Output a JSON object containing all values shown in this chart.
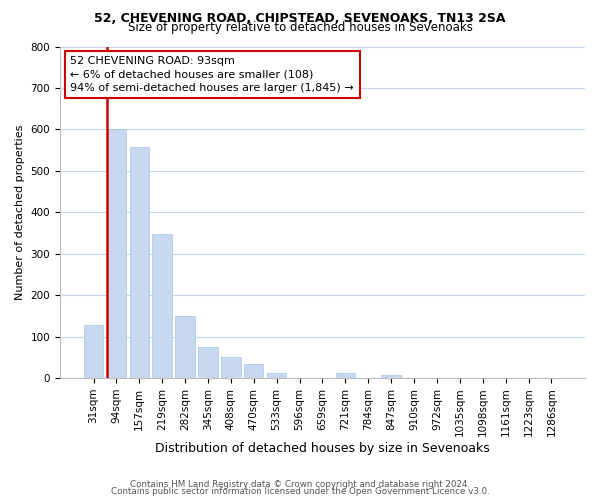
{
  "title1": "52, CHEVENING ROAD, CHIPSTEAD, SEVENOAKS, TN13 2SA",
  "title2": "Size of property relative to detached houses in Sevenoaks",
  "xlabel": "Distribution of detached houses by size in Sevenoaks",
  "ylabel": "Number of detached properties",
  "bar_labels": [
    "31sqm",
    "94sqm",
    "157sqm",
    "219sqm",
    "282sqm",
    "345sqm",
    "408sqm",
    "470sqm",
    "533sqm",
    "596sqm",
    "659sqm",
    "721sqm",
    "784sqm",
    "847sqm",
    "910sqm",
    "972sqm",
    "1035sqm",
    "1098sqm",
    "1161sqm",
    "1223sqm",
    "1286sqm"
  ],
  "bar_values": [
    128,
    600,
    558,
    348,
    150,
    75,
    50,
    33,
    13,
    0,
    0,
    13,
    0,
    7,
    0,
    0,
    0,
    0,
    0,
    0,
    0
  ],
  "bar_color": "#c6d9f0",
  "bar_edge_color": "#a8c4e0",
  "red_line_bar_index": 1,
  "red_line_color": "#cc0000",
  "annotation_text_line1": "52 CHEVENING ROAD: 93sqm",
  "annotation_text_line2": "← 6% of detached houses are smaller (108)",
  "annotation_text_line3": "94% of semi-detached houses are larger (1,845) →",
  "ylim": [
    0,
    800
  ],
  "yticks": [
    0,
    100,
    200,
    300,
    400,
    500,
    600,
    700,
    800
  ],
  "footer1": "Contains HM Land Registry data © Crown copyright and database right 2024.",
  "footer2": "Contains public sector information licensed under the Open Government Licence v3.0.",
  "bg_color": "#ffffff",
  "grid_color": "#c8d4e8",
  "title_fontsize": 9,
  "subtitle_fontsize": 8.5,
  "ylabel_fontsize": 8,
  "xlabel_fontsize": 9,
  "tick_fontsize": 7.5,
  "annot_fontsize": 8
}
